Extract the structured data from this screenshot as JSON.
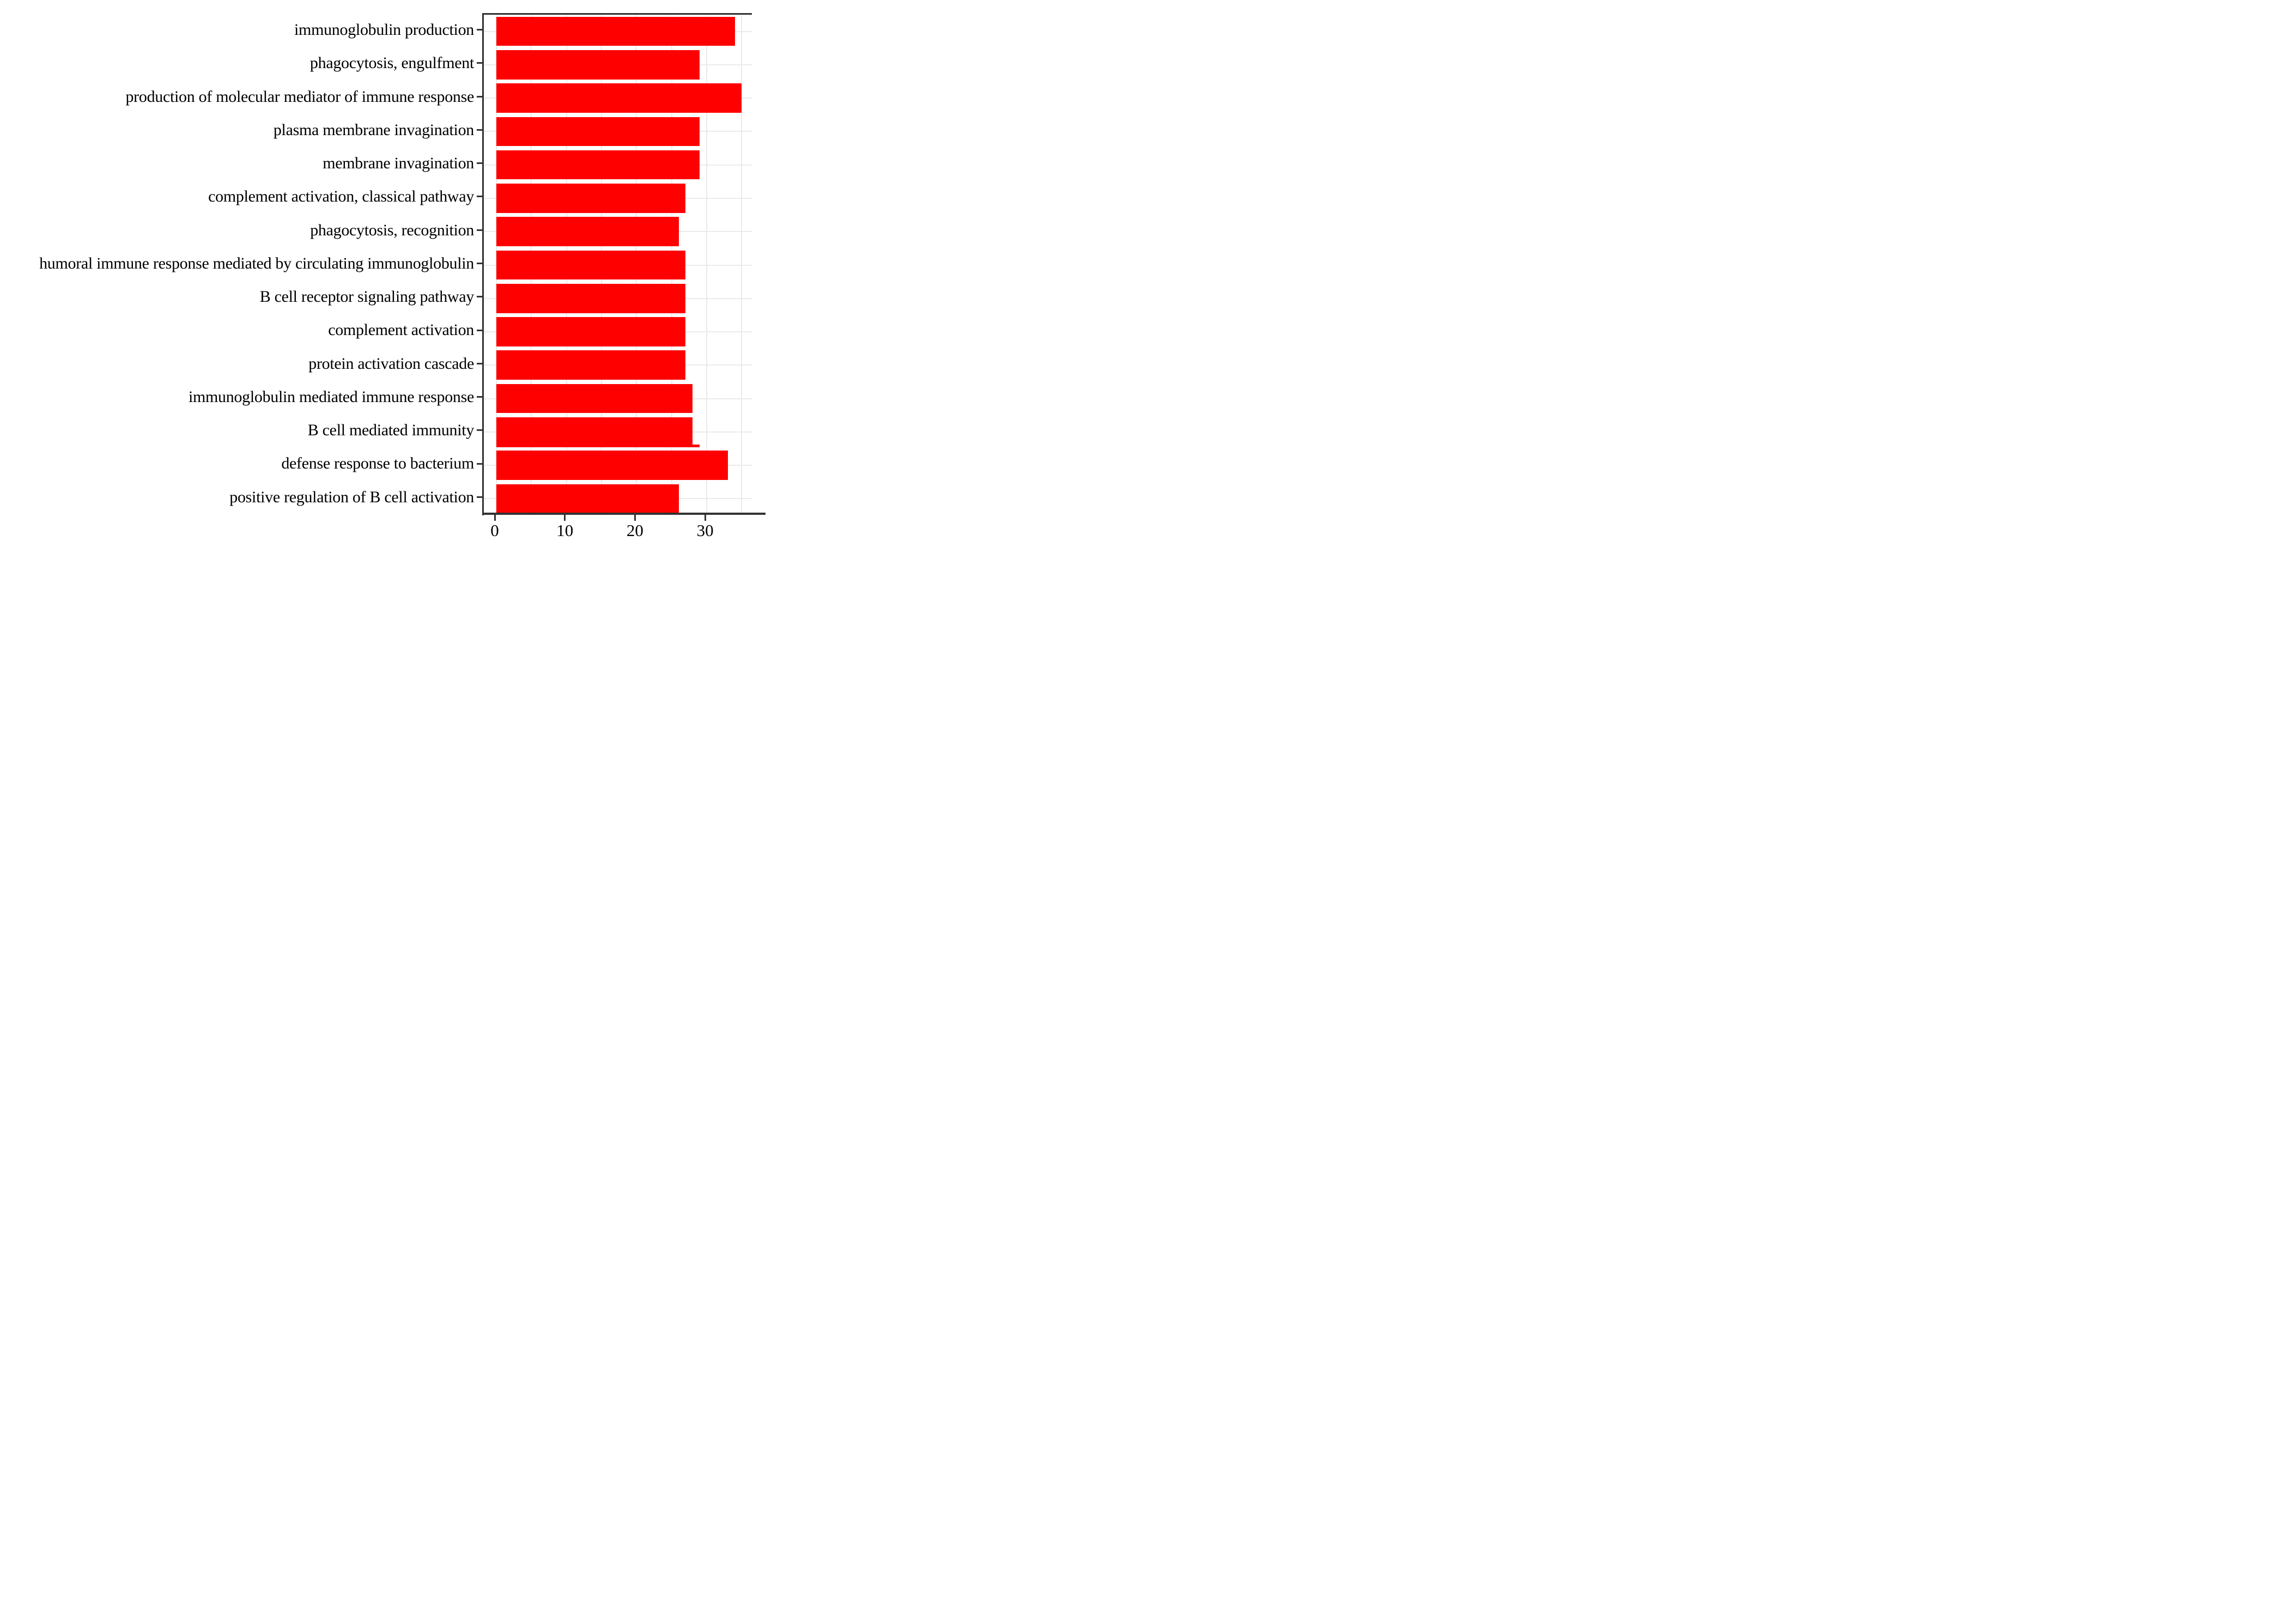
{
  "figure": {
    "background": "#ffffff",
    "title": ""
  },
  "chart_data": {
    "type": "bar",
    "orientation": "horizontal",
    "title": "",
    "xlabel": "",
    "ylabel": "",
    "categories": [
      "immunoglobulin production",
      "phagocytosis, engulfment",
      "production of molecular mediator of immune response",
      "plasma membrane invagination",
      "membrane invagination",
      "complement activation, classical pathway",
      "phagocytosis, recognition",
      "humoral immune response mediated by circulating immunoglobulin",
      "B cell receptor signaling pathway",
      "complement activation",
      "protein activation cascade",
      "immunoglobulin mediated immune response",
      "B cell mediated immunity",
      "defense response to bacterium",
      "positive regulation of B cell activation"
    ],
    "values": [
      34,
      29,
      35,
      29,
      29,
      27,
      26,
      27,
      27,
      27,
      27,
      28,
      28,
      33,
      26
    ],
    "overlap_sliver": {
      "category": "B cell mediated immunity",
      "category_index": 12,
      "value": 29,
      "note": "thin red bar edge visible just below the 'B cell mediated immunity' bar, slightly longer than it"
    },
    "x_ticks": [
      0,
      10,
      20,
      30
    ],
    "x_gridlines": [
      0,
      5,
      10,
      15,
      20,
      25,
      30,
      35
    ],
    "xlim_visible": [
      -1.8,
      36.4
    ],
    "bar_color": "#ff0000",
    "grid_color": "#ebebeb",
    "axis_color": "#333333",
    "text_color": "#000000",
    "legend": null,
    "grid": "on",
    "bar_width_fraction": 0.875
  }
}
